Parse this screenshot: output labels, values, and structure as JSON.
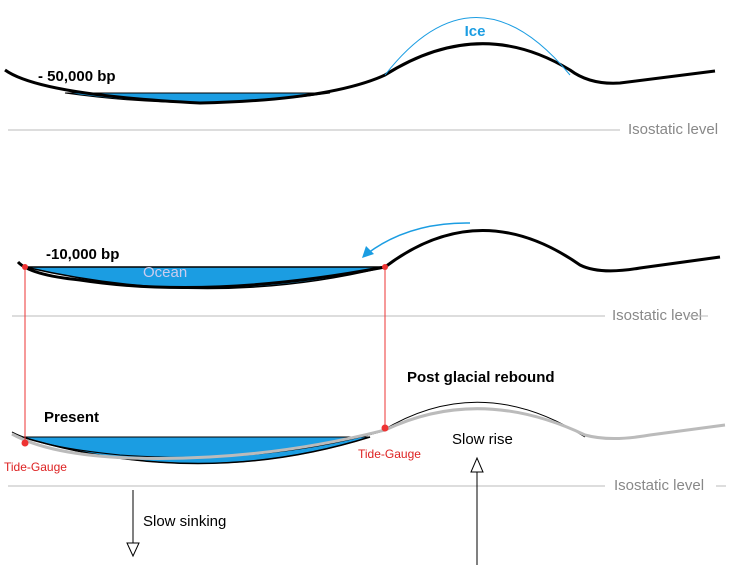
{
  "panels": [
    {
      "label": "- 50,000 bp",
      "ice": "Ice",
      "baseline": "Isostatic level"
    },
    {
      "label": "-10,000 bp",
      "ocean": "Ocean",
      "baseline": "Isostatic level"
    },
    {
      "label": "Present",
      "rebound": "Post glacial rebound",
      "rise": "Slow rise",
      "sinking": "Slow sinking",
      "gauges": [
        "Tide-Gauge",
        "Tide-Gauge"
      ],
      "baseline": "Isostatic level"
    }
  ]
}
